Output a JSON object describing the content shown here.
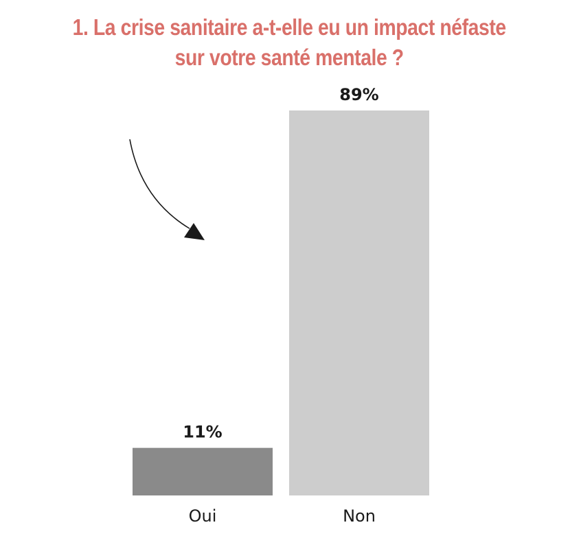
{
  "title": {
    "line1": "1. La crise sanitaire a-t-elle eu un impact néfaste",
    "line2": "sur votre santé mentale ?",
    "color": "#d9706a"
  },
  "chart_data": {
    "type": "bar",
    "categories": [
      "Oui",
      "Non"
    ],
    "values": [
      11,
      89
    ],
    "data_labels": [
      "11%",
      "89%"
    ],
    "bar_colors": [
      "#8a8a8a",
      "#cdcdcd"
    ],
    "ylim": [
      0,
      100
    ],
    "grid": false,
    "legend": "none",
    "xlabel": "",
    "ylabel": "",
    "annotation": "curved arrow pointing toward the bars"
  }
}
